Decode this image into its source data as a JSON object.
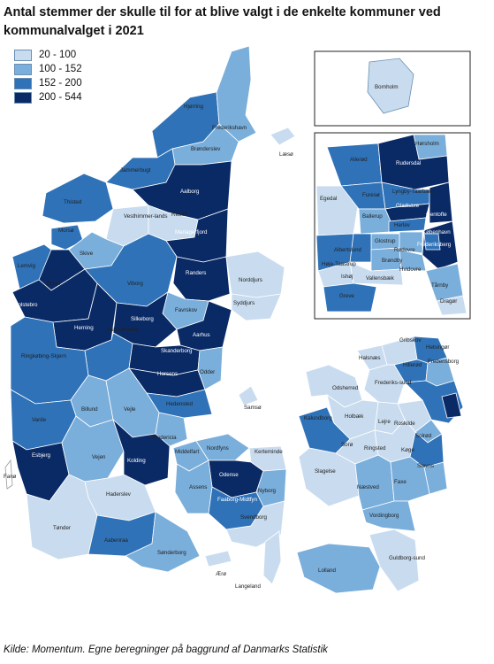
{
  "title": "Antal stemmer der skulle til for at blive valgt i de enkelte kommuner ved kommunalvalget i 2021",
  "legend": {
    "items": [
      {
        "label": "20 - 100",
        "color": "#c9dcef"
      },
      {
        "label": "100 - 152",
        "color": "#7aaedb"
      },
      {
        "label": "152 - 200",
        "color": "#2f72b8"
      },
      {
        "label": "200 - 544",
        "color": "#0a2a66"
      }
    ]
  },
  "source": "Kilde: Momentum. Egne beregninger på baggrund af Danmarks Statistik",
  "municipality_labels": [
    "Hjørring",
    "Frederikshavn",
    "Brønderslev",
    "Læsø",
    "Jammerbugt",
    "Aalborg",
    "Thisted",
    "Vesthimmer-lands",
    "Rebild",
    "Mariagerfjord",
    "Morsø",
    "Skive",
    "Lemvig",
    "Struer",
    "Viborg",
    "Randers",
    "Norddjurs",
    "Syddjurs",
    "Holstebro",
    "Favrskov",
    "Herning",
    "Silkeborg",
    "Ikast-Brande",
    "Aarhus",
    "Ringkøbing-Skjern",
    "Skanderborg",
    "Horsens",
    "Odder",
    "Samsø",
    "Hedensted",
    "Billund",
    "Vejle",
    "Varde",
    "Fredericia",
    "Esbjerg",
    "Kolding",
    "Vejen",
    "Middelfart",
    "Nordfyns",
    "Kerteminde",
    "Fanø",
    "Odense",
    "Haderslev",
    "Assens",
    "Nyborg",
    "Faaborg-Midtfyn",
    "Svendborg",
    "Tønder",
    "Aabenraa",
    "Sønderborg",
    "Ærø",
    "Langeland",
    "Bornholm",
    "Hørsholm",
    "Allerød",
    "Rudersdal",
    "Egedal",
    "Furesø",
    "Lyngby-Taarbæk",
    "Gladsaxe",
    "Ballerup",
    "Gentofte",
    "Herlev",
    "København",
    "Frederiksberg",
    "Glostrup",
    "Rødovre",
    "Albertslund",
    "Høje-Taastrup",
    "Brøndby",
    "Hvidovre",
    "Ishøj",
    "Vallensbæk",
    "Tårnby",
    "Greve",
    "Dragør",
    "Gribskov",
    "Helsingør",
    "Halsnæs",
    "Fredensborg",
    "Hillerød",
    "Odsherred",
    "Frederiks-sund",
    "Holbæk",
    "Kalundborg",
    "Lejre",
    "Roskilde",
    "Solrød",
    "Sorø",
    "Ringsted",
    "Køge",
    "Slagelse",
    "Stevns",
    "Næstved",
    "Faxe",
    "Vordingborg",
    "Guldborg-sund",
    "Lolland"
  ]
}
